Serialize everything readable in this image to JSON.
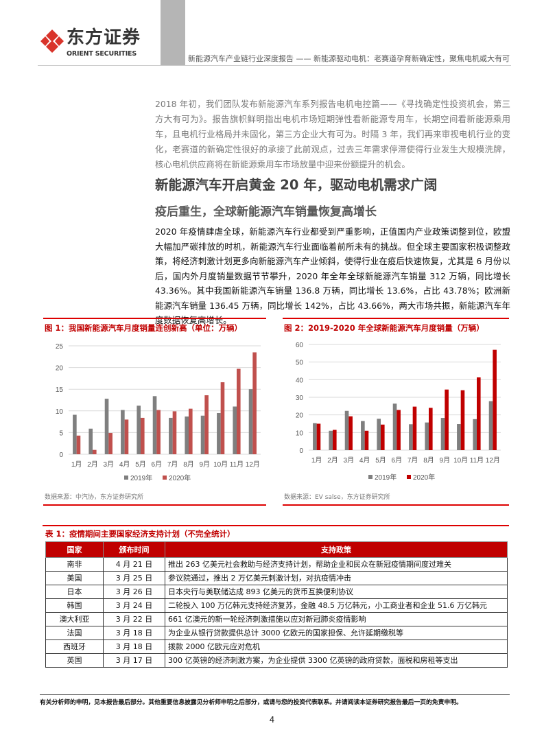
{
  "header": {
    "logo_cn": "东方证券",
    "logo_en": "ORIENT SECURITIES",
    "report_title": "新能源汽车产业链行业深度报告 —— 新能源驱动电机：老赛道孕育新确定性，聚焦电机或大有可",
    "brand_color": "#d9342b"
  },
  "intro_paragraph": "2018 年初，我们团队发布新能源汽车系列报告电机电控篇——《寻找确定性投资机会，第三方大有可为》。报告旗帜鲜明指出电机市场短期弹性看新能源专用车，长期空间看新能源乘用车，且电机行业格局并未固化，第三方企业大有可为。时隔 3 年，我们再来审视电机行业的变化，老赛道的新确定性很好的承接了此前观点，过去三年需求停滞使得行业发生大规模洗牌，核心电机供应商将在新能源乘用车市场放量中迎来份额提升的机会。",
  "heading1": "新能源汽车开启黄金 20 年，驱动电机需求广阔",
  "heading2": "疫后重生，全球新能源汽车销量恢复高增长",
  "body_paragraph": "2020 年疫情肆虐全球，新能源汽车行业都受到严重影响，正值国内产业政策调整到位，欧盟大幅加严碳排放的时机，新能源汽车行业面临着前所未有的挑战。但全球主要国家积极调整政策，将经济刺激计划更多向新能源汽车产业倾斜，使得行业在疫后快速恢复，尤其是 6 月份以后，国内外月度销量数据节节攀升，2020 年全年全球新能源汽车销量 312 万辆，同比增长 43.36%。其中我国新能源汽车销量 136.8 万辆，同比增长 13.6%，占比 43.78%；欧洲新能源汽车销量 136.45 万辆，同比增长 142%，占比 43.66%，两大市场共振，新能源汽车年度数据恢复高增长。",
  "chart_data": [
    {
      "type": "bar",
      "title": "图 1：我国新能源汽车月度销量连创新高（单位：万辆）",
      "source": "数据来源：中汽协，东方证券研究所",
      "categories": [
        "1月",
        "2月",
        "3月",
        "4月",
        "5月",
        "6月",
        "7月",
        "8月",
        "9月",
        "10月",
        "11月",
        "12月"
      ],
      "series": [
        {
          "name": "2019年",
          "color": "#7f7f7f",
          "values": [
            9.1,
            5.9,
            12.8,
            10.2,
            11.2,
            13.4,
            8.4,
            8.7,
            8.9,
            9.5,
            11.0,
            15.0
          ]
        },
        {
          "name": "2020年",
          "color": "#c0504d",
          "values": [
            4.3,
            1.0,
            4.9,
            8.0,
            8.4,
            10.2,
            9.9,
            10.5,
            13.6,
            16.6,
            19.7,
            23.5
          ]
        }
      ],
      "ylim": [
        0,
        25
      ],
      "yticks": [
        0,
        5,
        10,
        15,
        20,
        25
      ],
      "grid": true,
      "legend": "bottom"
    },
    {
      "type": "bar",
      "title": "图 2：2019-2020 年全球新能源汽车月度销量（万辆）",
      "source": "数据来源：EV salse，东方证券研究所",
      "categories": [
        "1月",
        "2月",
        "3月",
        "4月",
        "5月",
        "6月",
        "7月",
        "8月",
        "9月",
        "10月",
        "11月",
        "12月"
      ],
      "series": [
        {
          "name": "2019年",
          "color": "#7f7f7f",
          "values": [
            15.3,
            11.0,
            22.3,
            16.5,
            17.8,
            26.4,
            14.7,
            15.7,
            18.3,
            14.8,
            17.6,
            27.8
          ]
        },
        {
          "name": "2020年",
          "color": "#c00000",
          "values": [
            15.0,
            11.5,
            19.2,
            11.0,
            14.5,
            22.8,
            24.7,
            24.0,
            34.4,
            34.0,
            41.3,
            57.0
          ]
        }
      ],
      "ylim": [
        0,
        60
      ],
      "yticks": [
        0,
        10,
        20,
        30,
        40,
        50,
        60
      ],
      "grid": true,
      "legend": "bottom"
    }
  ],
  "table": {
    "title": "表 1：疫情期间主要国家经济支持计划（不完全统计）",
    "headers": [
      "国家",
      "颁布时间",
      "支持政策"
    ],
    "rows": [
      [
        "南非",
        "4 月 21 日",
        "推出 263 亿美元社会救助与经济支持计划，帮助企业和民众在新冠疫情期间度过难关"
      ],
      [
        "美国",
        "3 月 25 日",
        "参议院通过，推出 2 万亿美元刺激计划，对抗疫情冲击"
      ],
      [
        "日本",
        "3 月 26 日",
        "日本央行与美联储达成 893 亿美元的货币互换便利协议"
      ],
      [
        "韩国",
        "3 月 24 日",
        "二轮投入 100 万亿韩元支持经济复苏，金融 48.5 万亿韩元，小工商业者和企业 51.6 万亿韩元"
      ],
      [
        "澳大利亚",
        "3 月 22 日",
        "661 亿澳元的新一轮经济刺激措施以应对新冠肺炎疫情影响"
      ],
      [
        "法国",
        "3 月 18 日",
        "为企业从银行贷款提供总计 3000 亿欧元的国家担保、允许延期缴税等"
      ],
      [
        "西班牙",
        "3 月 18 日",
        "拨款 2000 亿欧元应对危机"
      ],
      [
        "英国",
        "3 月 17 日",
        "300 亿英镑的经济刺激方案，为企业提供 3300 亿英镑的政府贷款，面税和房租等支出"
      ]
    ]
  },
  "footer": {
    "disclaimer": "有关分析师的申明，见本报告最后部分。其他重要信息披露见分析师申明之后部分，或请与您的投资代表联系。并请阅读本证券研究报告最后一页的免责申明。",
    "page_number": "4"
  }
}
